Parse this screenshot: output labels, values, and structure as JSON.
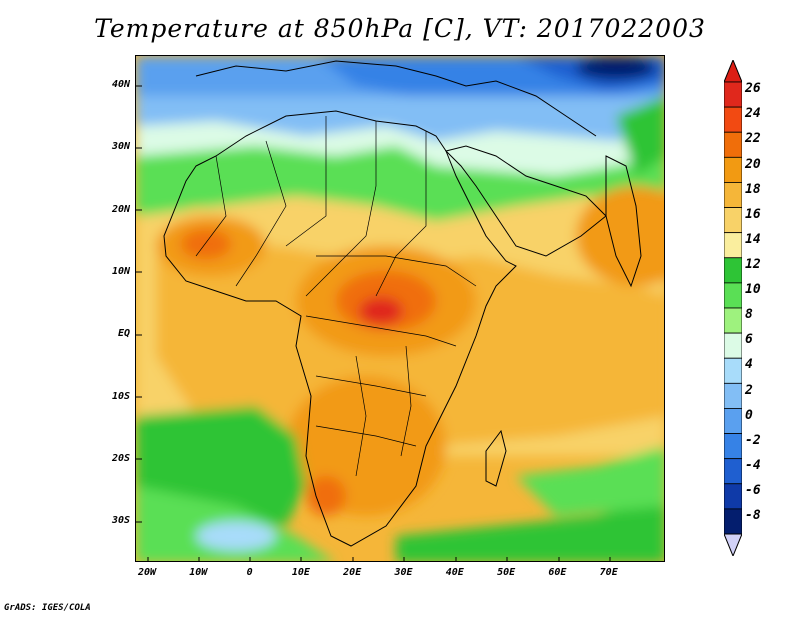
{
  "title": "Temperature at 850hPa [C], VT: 2017022003",
  "credit": "GrADS: IGES/COLA",
  "map": {
    "lat_labels": [
      "40N",
      "30N",
      "20N",
      "10N",
      "EQ",
      "10S",
      "20S",
      "30S"
    ],
    "lon_labels": [
      "20W",
      "10W",
      "0",
      "10E",
      "20E",
      "30E",
      "40E",
      "50E",
      "60E",
      "70E"
    ]
  },
  "colorbar": {
    "labels": [
      "26",
      "24",
      "22",
      "20",
      "18",
      "16",
      "14",
      "12",
      "10",
      "8",
      "6",
      "4",
      "2",
      "0",
      "-2",
      "-4",
      "-6",
      "-8"
    ],
    "colors": [
      "#e0281c",
      "#f24a12",
      "#f06e0a",
      "#f29a12",
      "#f5b639",
      "#f8d268",
      "#faee9e",
      "#2ec436",
      "#5adf55",
      "#9ef27e",
      "#dcfbe6",
      "#a8dcfa",
      "#82bef5",
      "#5aa0ef",
      "#3682e6",
      "#1f5fd0",
      "#0f3aa8",
      "#041e6e"
    ],
    "top_arrow_color": "#dc1e14",
    "bottom_arrow_color": "#d2d2f8"
  }
}
